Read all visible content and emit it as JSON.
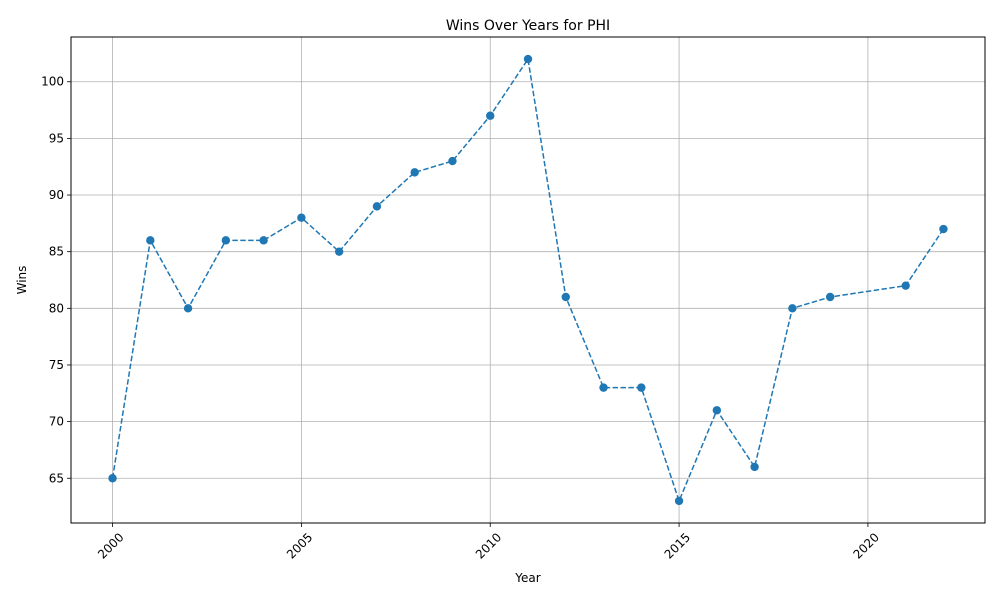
{
  "chart_data": {
    "type": "line",
    "title": "Wins Over Years for PHI",
    "xlabel": "Year",
    "ylabel": "Wins",
    "xlim": [
      1998.9,
      2023.1
    ],
    "ylim": [
      61.05,
      103.95
    ],
    "x_ticks": [
      2000,
      2005,
      2010,
      2015,
      2020
    ],
    "y_ticks": [
      65,
      70,
      75,
      80,
      85,
      90,
      95,
      100
    ],
    "x_tick_rotation_deg": 45,
    "grid": true,
    "legend": "none",
    "series": [
      {
        "color": "#1f77b4",
        "line_style": "dashed",
        "marker": "circle",
        "x": [
          2000,
          2001,
          2002,
          2003,
          2004,
          2005,
          2006,
          2007,
          2008,
          2009,
          2010,
          2011,
          2012,
          2013,
          2014,
          2015,
          2016,
          2017,
          2018,
          2019,
          2021,
          2022
        ],
        "y": [
          65,
          86,
          80,
          86,
          86,
          88,
          85,
          89,
          92,
          93,
          97,
          102,
          81,
          73,
          73,
          63,
          71,
          66,
          80,
          81,
          82,
          87
        ]
      }
    ]
  }
}
